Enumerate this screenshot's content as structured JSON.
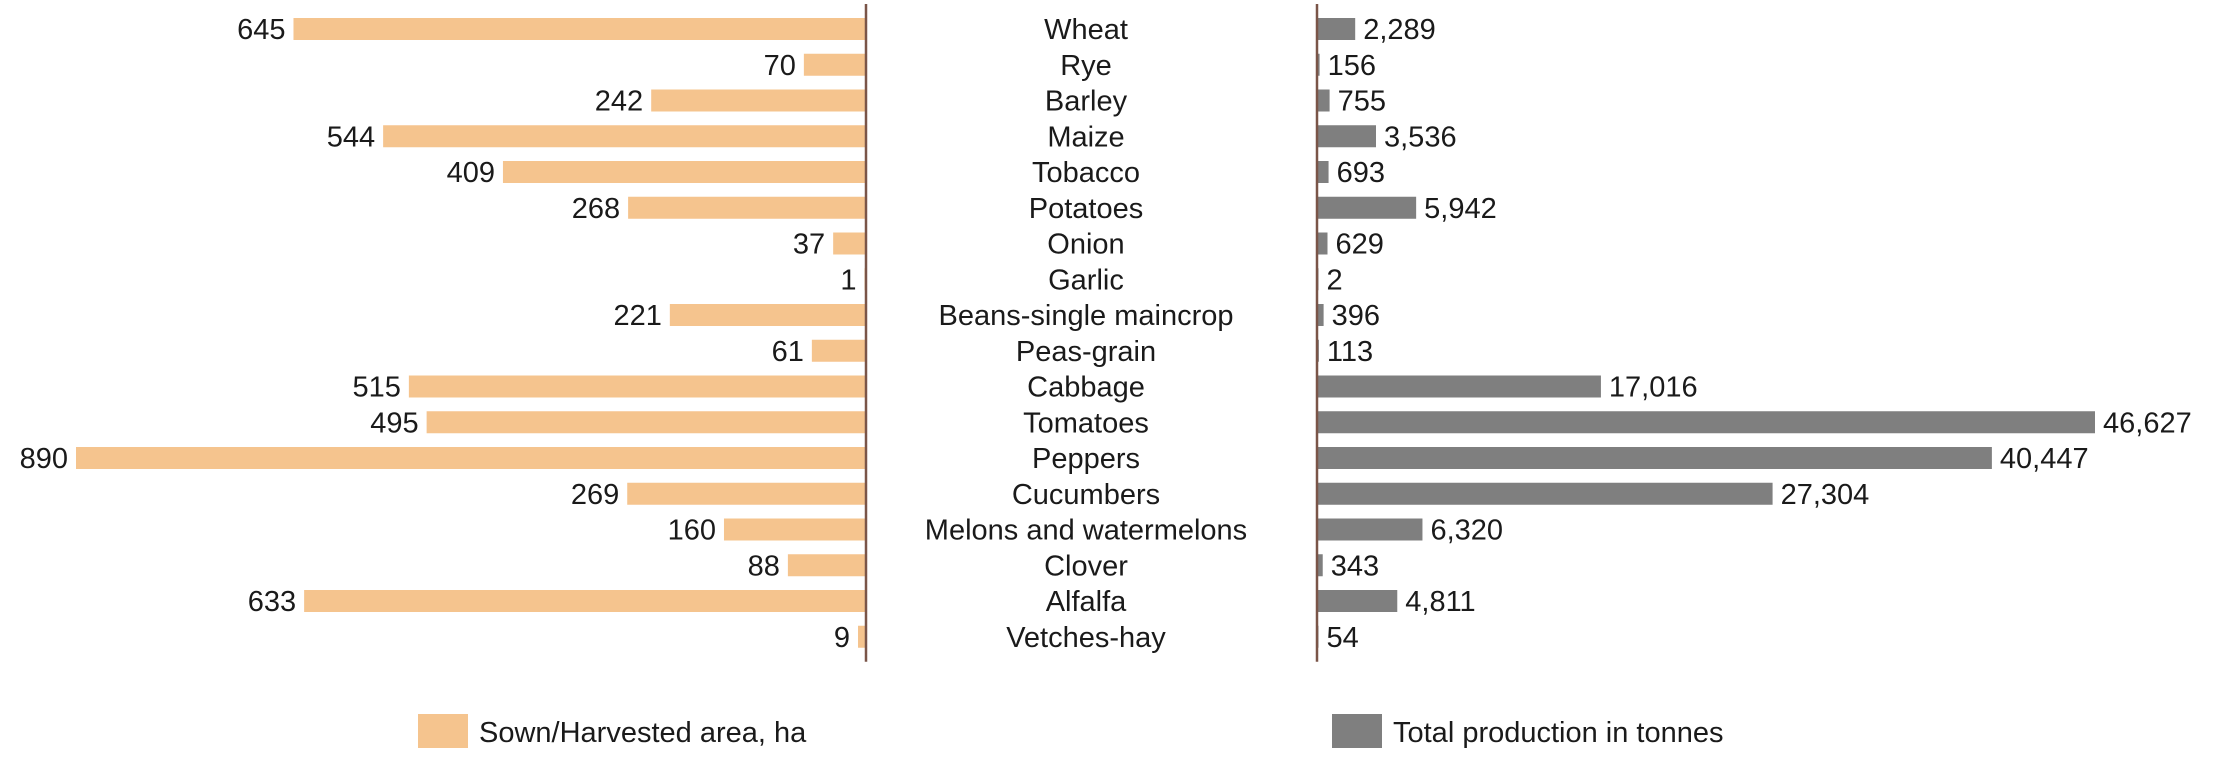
{
  "chart_data": {
    "type": "bar",
    "categories": [
      "Wheat",
      "Rye",
      "Barley",
      "Maize",
      "Tobacco",
      "Potatoes",
      "Onion",
      "Garlic",
      "Beans-single maincrop",
      "Peas-grain",
      "Cabbage",
      "Tomatoes",
      "Peppers",
      "Cucumbers",
      "Melons and watermelons",
      "Clover",
      "Alfalfa",
      "Vetches-hay"
    ],
    "series": [
      {
        "name": "Sown/Harvested area, ha",
        "color": "#f5c48e",
        "values": [
          645,
          70,
          242,
          544,
          409,
          268,
          37,
          1,
          221,
          61,
          515,
          495,
          890,
          269,
          160,
          88,
          633,
          9
        ],
        "labels": [
          "645",
          "70",
          "242",
          "544",
          "409",
          "268",
          "37",
          "1",
          "221",
          "61",
          "515",
          "495",
          "890",
          "269",
          "160",
          "88",
          "633",
          "9"
        ]
      },
      {
        "name": "Total production in tonnes",
        "color": "#7f7f7f",
        "values": [
          2289,
          156,
          755,
          3536,
          693,
          5942,
          629,
          2,
          396,
          113,
          17016,
          46627,
          40447,
          27304,
          6320,
          343,
          4811,
          54
        ],
        "labels": [
          "2,289",
          "156",
          "755",
          "3,536",
          "693",
          "5,942",
          "629",
          "2",
          "396",
          "113",
          "17,016",
          "46,627",
          "40,447",
          "27,304",
          "6,320",
          "343",
          "4,811",
          "54"
        ]
      }
    ],
    "legend_position": "bottom",
    "grid": false,
    "axis_line_color": "#7a5548"
  }
}
